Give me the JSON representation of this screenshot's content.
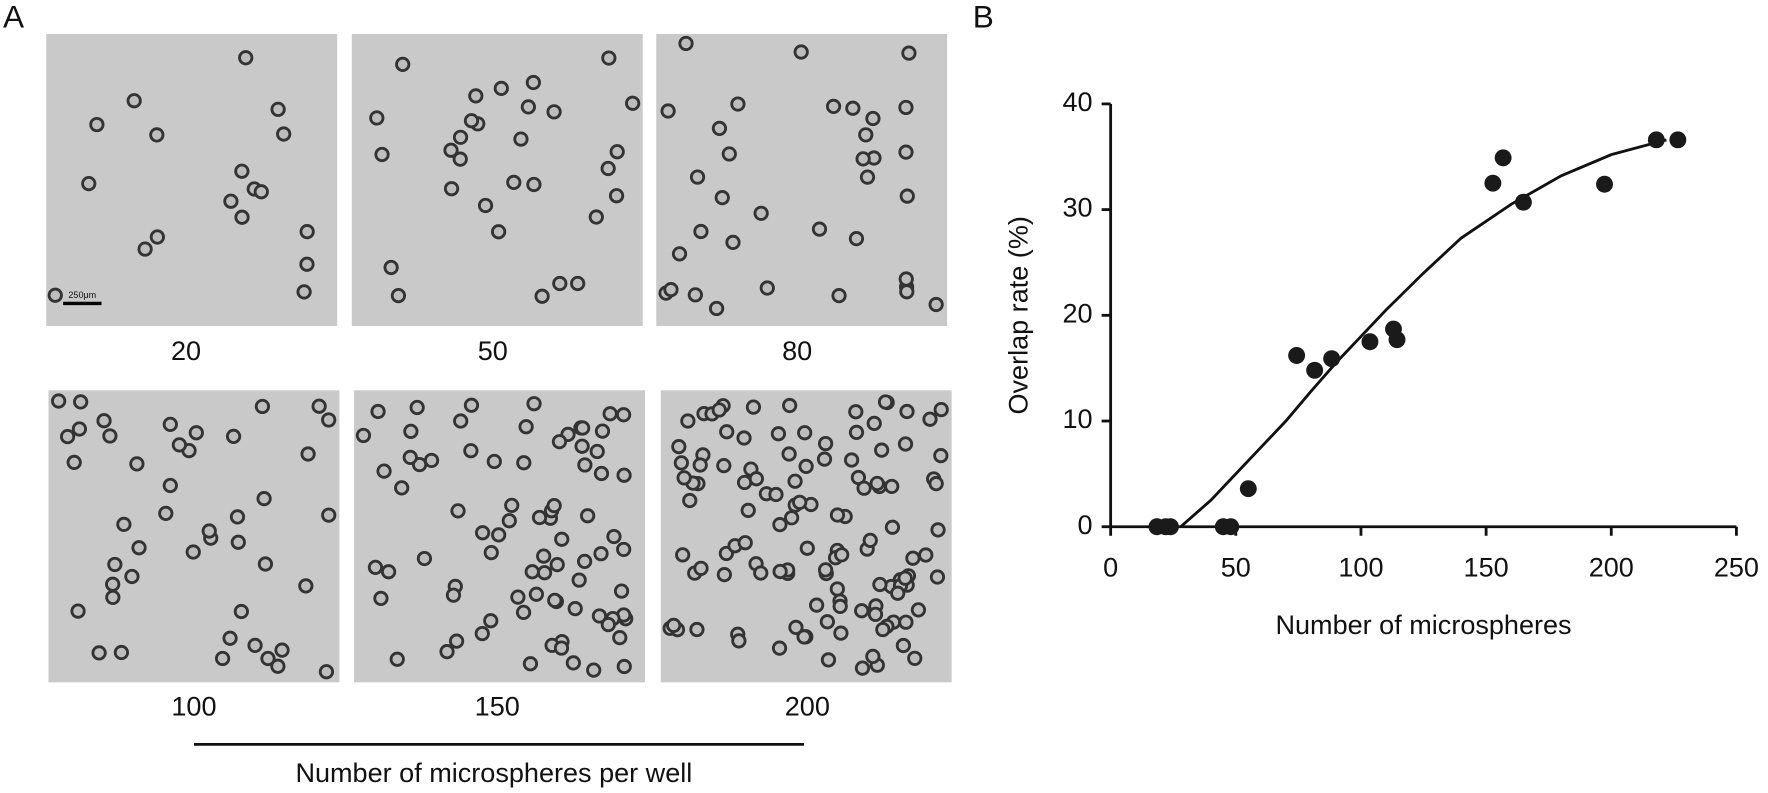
{
  "panel_a": {
    "label": "A",
    "scale_bar": "250μm",
    "images": [
      "20",
      "50",
      "80",
      "100",
      "150",
      "200"
    ],
    "caption": "Number of microspheres per well"
  },
  "chart_data": {
    "type": "scatter",
    "panel_label": "B",
    "xlabel": "Number of microspheres",
    "ylabel": "Overlap rate (%)",
    "x": [
      18.5,
      22,
      23.9,
      45,
      48,
      55,
      74.3,
      81.5,
      88.3,
      103.6,
      113,
      114.4,
      152.7,
      156.8,
      164.9,
      197.3,
      218,
      226.6
    ],
    "values": [
      0,
      0,
      0,
      0,
      0,
      3.6,
      16.2,
      14.8,
      15.9,
      17.5,
      18.7,
      17.7,
      32.5,
      34.9,
      30.7,
      32.4,
      36.6,
      36.6
    ],
    "color": "#1a1a1a",
    "fit": {
      "x": [
        28,
        40,
        50,
        60,
        70,
        80,
        90,
        100,
        110,
        125,
        140,
        160,
        180,
        200,
        222
      ],
      "values": [
        0,
        2.5,
        5,
        7.5,
        10,
        12.8,
        15.5,
        18,
        20.5,
        24,
        27.3,
        30.5,
        33.2,
        35.2,
        36.6
      ]
    },
    "xlim": [
      0,
      250
    ],
    "ylim": [
      0,
      40
    ],
    "xticks": [
      0,
      50,
      100,
      150,
      200,
      250
    ],
    "yticks": [
      0,
      10,
      20,
      30,
      40
    ]
  }
}
